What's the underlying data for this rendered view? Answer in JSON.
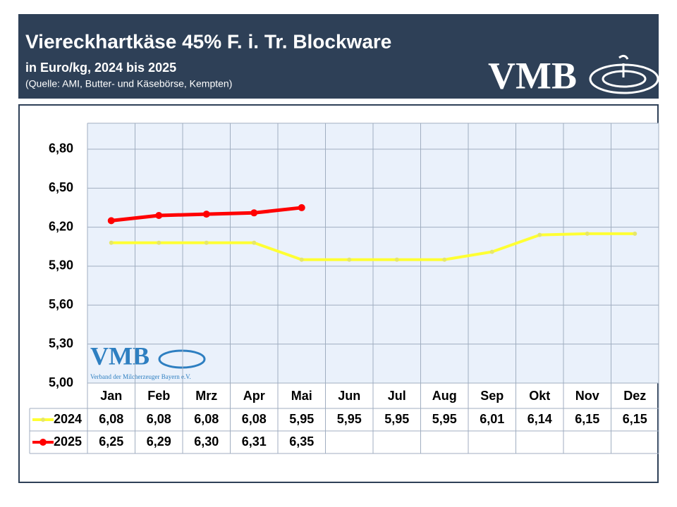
{
  "chart_data": {
    "type": "line",
    "title": "Viereckhartkäse 45% F. i. Tr. Blockware",
    "subtitle": "in Euro/kg, 2024 bis 2025",
    "source": "(Quelle: AMI, Butter- und Käsebörse, Kempten)",
    "logo": {
      "text": "VMB",
      "subtext": "Verband der Milcherzeuger Bayern e.V."
    },
    "categories": [
      "Jan",
      "Feb",
      "Mrz",
      "Apr",
      "Mai",
      "Jun",
      "Jul",
      "Aug",
      "Sep",
      "Okt",
      "Nov",
      "Dez"
    ],
    "series": [
      {
        "name": "2024",
        "color": "#ffff33",
        "values": [
          6.08,
          6.08,
          6.08,
          6.08,
          5.95,
          5.95,
          5.95,
          5.95,
          6.01,
          6.14,
          6.15,
          6.15
        ],
        "value_labels": [
          "6,08",
          "6,08",
          "6,08",
          "6,08",
          "5,95",
          "5,95",
          "5,95",
          "5,95",
          "6,01",
          "6,14",
          "6,15",
          "6,15"
        ]
      },
      {
        "name": "2025",
        "color": "#ff0000",
        "values": [
          6.25,
          6.29,
          6.3,
          6.31,
          6.35,
          null,
          null,
          null,
          null,
          null,
          null,
          null
        ],
        "value_labels": [
          "6,25",
          "6,29",
          "6,30",
          "6,31",
          "6,35",
          null,
          null,
          null,
          null,
          null,
          null,
          null
        ]
      }
    ],
    "ylim": [
      5.0,
      7.0
    ],
    "yticks": [
      {
        "value": 5.0,
        "label": "5,00"
      },
      {
        "value": 5.3,
        "label": "5,30"
      },
      {
        "value": 5.6,
        "label": "5,60"
      },
      {
        "value": 5.9,
        "label": "5,90"
      },
      {
        "value": 6.2,
        "label": "6,20"
      },
      {
        "value": 6.5,
        "label": "6,50"
      },
      {
        "value": 6.8,
        "label": "6,80"
      }
    ],
    "grid": true
  }
}
